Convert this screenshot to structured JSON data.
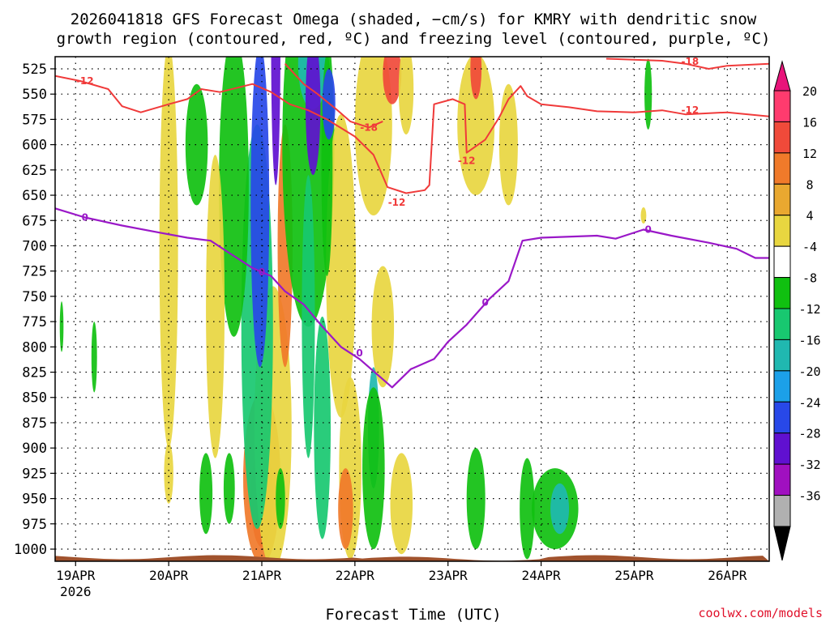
{
  "chart_data": {
    "type": "heatmap",
    "title_line1": "2026041818 GFS Forecast Omega (shaded, −cm/s) for KMRY with dendritic snow",
    "title_line2": "growth region (contoured, red, ºC) and freezing level (contoured, purple, ºC)",
    "xlabel": "Forecast Time (UTC)",
    "credit": "coolwx.com/models",
    "x_ticks": [
      {
        "t": 0,
        "label": "19APR",
        "sub": "2026"
      },
      {
        "t": 1,
        "label": "20APR"
      },
      {
        "t": 2,
        "label": "21APR"
      },
      {
        "t": 3,
        "label": "22APR"
      },
      {
        "t": 4,
        "label": "23APR"
      },
      {
        "t": 5,
        "label": "24APR"
      },
      {
        "t": 6,
        "label": "25APR"
      },
      {
        "t": 7,
        "label": "26APR"
      }
    ],
    "xlim": [
      -0.22,
      7.45
    ],
    "y_levels": [
      525,
      550,
      575,
      600,
      625,
      650,
      675,
      700,
      725,
      750,
      775,
      800,
      825,
      850,
      875,
      900,
      925,
      950,
      975,
      1000
    ],
    "ylim": [
      513,
      1012
    ],
    "colorbar": {
      "labels": [
        "20",
        "16",
        "12",
        "8",
        "4",
        "-4",
        "-8",
        "-12",
        "-16",
        "-20",
        "-24",
        "-28",
        "-32",
        "-36"
      ],
      "bands": [
        "#ff3b6e",
        "#f04a3a",
        "#f07a2a",
        "#e9a830",
        "#e8d640",
        "#ffffff",
        "#10c010",
        "#18c870",
        "#20b8b0",
        "#1ca0e8",
        "#2848e8",
        "#6010d0",
        "#a010c0",
        "#b0b0b0"
      ],
      "top_arrow": "#e8147a",
      "bottom_arrow": "#000000"
    },
    "freezing_level": {
      "label": "0",
      "color": "#9a18c8",
      "points": [
        [
          -0.22,
          663
        ],
        [
          0.1,
          672
        ],
        [
          0.5,
          680
        ],
        [
          0.9,
          687
        ],
        [
          1.2,
          692
        ],
        [
          1.45,
          695
        ],
        [
          1.7,
          710
        ],
        [
          1.9,
          722
        ],
        [
          2.1,
          730
        ],
        [
          2.25,
          745
        ],
        [
          2.45,
          758
        ],
        [
          2.65,
          780
        ],
        [
          2.85,
          800
        ],
        [
          3.05,
          812
        ],
        [
          3.3,
          832
        ],
        [
          3.4,
          840
        ],
        [
          3.6,
          822
        ],
        [
          3.85,
          812
        ],
        [
          4.0,
          795
        ],
        [
          4.2,
          778
        ],
        [
          4.45,
          752
        ],
        [
          4.65,
          735
        ],
        [
          4.8,
          695
        ],
        [
          5.0,
          692
        ],
        [
          5.6,
          690
        ],
        [
          5.8,
          693
        ],
        [
          6.1,
          684
        ],
        [
          6.4,
          690
        ],
        [
          6.8,
          697
        ],
        [
          7.1,
          703
        ],
        [
          7.3,
          712
        ],
        [
          7.45,
          712
        ]
      ],
      "labels_at": [
        [
          0.1,
          672
        ],
        [
          2.0,
          726
        ],
        [
          3.05,
          806
        ],
        [
          4.4,
          756
        ],
        [
          6.15,
          684
        ]
      ]
    },
    "dgz_contours": {
      "color": "#f03a3a",
      "lines": [
        {
          "label": "-12",
          "points": [
            [
              -0.22,
              532
            ],
            [
              0.05,
              537
            ],
            [
              0.35,
              545
            ],
            [
              0.5,
              562
            ],
            [
              0.7,
              568
            ],
            [
              1.0,
              560
            ],
            [
              1.2,
              555
            ],
            [
              1.35,
              545
            ],
            [
              1.55,
              548
            ],
            [
              1.9,
              540
            ],
            [
              2.1,
              548
            ],
            [
              2.3,
              560
            ],
            [
              2.5,
              566
            ],
            [
              2.7,
              575
            ],
            [
              3.0,
              592
            ],
            [
              3.2,
              610
            ],
            [
              3.35,
              642
            ],
            [
              3.55,
              648
            ],
            [
              3.75,
              645
            ],
            [
              3.8,
              640
            ],
            [
              3.85,
              560
            ],
            [
              4.05,
              555
            ],
            [
              4.18,
              560
            ],
            [
              4.2,
              608
            ],
            [
              4.4,
              595
            ],
            [
              4.55,
              573
            ],
            [
              4.65,
              555
            ],
            [
              4.78,
              542
            ],
            [
              4.85,
              552
            ],
            [
              5.0,
              560
            ],
            [
              5.3,
              563
            ],
            [
              5.6,
              567
            ],
            [
              6.0,
              568
            ],
            [
              6.3,
              566
            ],
            [
              6.55,
              570
            ],
            [
              7.0,
              568
            ],
            [
              7.45,
              572
            ]
          ],
          "labels_at": [
            [
              0.1,
              537
            ],
            [
              4.2,
              616
            ],
            [
              6.6,
              566
            ],
            [
              3.45,
              657
            ]
          ]
        },
        {
          "label": "-18",
          "points": [
            [
              2.25,
              520
            ],
            [
              2.45,
              540
            ],
            [
              2.6,
              550
            ],
            [
              2.8,
              565
            ],
            [
              2.95,
              577
            ],
            [
              3.15,
              583
            ],
            [
              3.3,
              577
            ]
          ],
          "labels_at": [
            [
              3.15,
              583
            ]
          ]
        },
        {
          "label": "-18",
          "points": [
            [
              5.7,
              515
            ],
            [
              6.3,
              517
            ],
            [
              6.55,
              520
            ],
            [
              6.8,
              525
            ],
            [
              7.0,
              522
            ],
            [
              7.45,
              520
            ]
          ],
          "labels_at": [
            [
              6.6,
              518
            ]
          ]
        }
      ]
    },
    "omega_cells": [
      {
        "x": 2.0,
        "y": 948,
        "rx": 0.12,
        "ry": 50,
        "v": 20
      },
      {
        "x": 2.0,
        "y": 930,
        "rx": 0.2,
        "ry": 85,
        "v": 12
      },
      {
        "x": 2.12,
        "y": 880,
        "rx": 0.2,
        "ry": 140,
        "v": 6
      },
      {
        "x": 1.95,
        "y": 780,
        "rx": 0.17,
        "ry": 200,
        "v": -10
      },
      {
        "x": 1.98,
        "y": 660,
        "rx": 0.1,
        "ry": 160,
        "v": -22
      },
      {
        "x": 2.25,
        "y": 700,
        "rx": 0.08,
        "ry": 120,
        "v": 12
      },
      {
        "x": 1.7,
        "y": 640,
        "rx": 0.16,
        "ry": 150,
        "v": -8
      },
      {
        "x": 1.5,
        "y": 760,
        "rx": 0.1,
        "ry": 150,
        "v": 6
      },
      {
        "x": 1.65,
        "y": 940,
        "rx": 0.06,
        "ry": 35,
        "v": -8
      },
      {
        "x": 1.3,
        "y": 600,
        "rx": 0.12,
        "ry": 60,
        "v": -8
      },
      {
        "x": 1.0,
        "y": 700,
        "rx": 0.1,
        "ry": 200,
        "v": 6
      },
      {
        "x": 2.5,
        "y": 600,
        "rx": 0.28,
        "ry": 180,
        "v": -8
      },
      {
        "x": 2.55,
        "y": 520,
        "rx": 0.16,
        "ry": 45,
        "v": -14
      },
      {
        "x": 2.55,
        "y": 560,
        "rx": 0.08,
        "ry": 70,
        "v": -26
      },
      {
        "x": 2.65,
        "y": 880,
        "rx": 0.09,
        "ry": 110,
        "v": -10
      },
      {
        "x": 2.15,
        "y": 500,
        "rx": 0.05,
        "ry": 140,
        "v": -26
      },
      {
        "x": 2.5,
        "y": 770,
        "rx": 0.07,
        "ry": 140,
        "v": -10
      },
      {
        "x": 2.85,
        "y": 720,
        "rx": 0.16,
        "ry": 150,
        "v": 6
      },
      {
        "x": 2.7,
        "y": 620,
        "rx": 0.06,
        "ry": 110,
        "v": -8
      },
      {
        "x": 2.72,
        "y": 560,
        "rx": 0.07,
        "ry": 35,
        "v": -22
      },
      {
        "x": 3.2,
        "y": 580,
        "rx": 0.2,
        "ry": 90,
        "v": 5
      },
      {
        "x": 3.4,
        "y": 530,
        "rx": 0.1,
        "ry": 30,
        "v": 16
      },
      {
        "x": 3.55,
        "y": 545,
        "rx": 0.08,
        "ry": 45,
        "v": 7
      },
      {
        "x": 3.3,
        "y": 780,
        "rx": 0.12,
        "ry": 60,
        "v": 5
      },
      {
        "x": 3.2,
        "y": 880,
        "rx": 0.06,
        "ry": 60,
        "v": -14
      },
      {
        "x": 3.2,
        "y": 920,
        "rx": 0.12,
        "ry": 80,
        "v": -8
      },
      {
        "x": 2.95,
        "y": 920,
        "rx": 0.12,
        "ry": 90,
        "v": 5
      },
      {
        "x": 2.9,
        "y": 960,
        "rx": 0.08,
        "ry": 40,
        "v": 14
      },
      {
        "x": 3.5,
        "y": 955,
        "rx": 0.12,
        "ry": 50,
        "v": 5
      },
      {
        "x": 2.2,
        "y": 950,
        "rx": 0.05,
        "ry": 30,
        "v": -8
      },
      {
        "x": 1.4,
        "y": 945,
        "rx": 0.07,
        "ry": 40,
        "v": -8
      },
      {
        "x": 1.0,
        "y": 925,
        "rx": 0.05,
        "ry": 30,
        "v": 5
      },
      {
        "x": -0.15,
        "y": 780,
        "rx": 0.02,
        "ry": 25,
        "v": -8
      },
      {
        "x": 0.2,
        "y": 810,
        "rx": 0.03,
        "ry": 35,
        "v": -8
      },
      {
        "x": 4.3,
        "y": 950,
        "rx": 0.1,
        "ry": 50,
        "v": -8
      },
      {
        "x": 4.85,
        "y": 960,
        "rx": 0.08,
        "ry": 50,
        "v": -8
      },
      {
        "x": 5.15,
        "y": 960,
        "rx": 0.25,
        "ry": 40,
        "v": -8
      },
      {
        "x": 5.2,
        "y": 960,
        "rx": 0.1,
        "ry": 25,
        "v": -14
      },
      {
        "x": 4.3,
        "y": 580,
        "rx": 0.2,
        "ry": 70,
        "v": 5
      },
      {
        "x": 4.65,
        "y": 600,
        "rx": 0.1,
        "ry": 60,
        "v": 5
      },
      {
        "x": 4.3,
        "y": 525,
        "rx": 0.06,
        "ry": 30,
        "v": 16
      },
      {
        "x": 6.15,
        "y": 550,
        "rx": 0.04,
        "ry": 35,
        "v": -8
      },
      {
        "x": 6.1,
        "y": 670,
        "rx": 0.03,
        "ry": 8,
        "v": 5
      }
    ]
  }
}
